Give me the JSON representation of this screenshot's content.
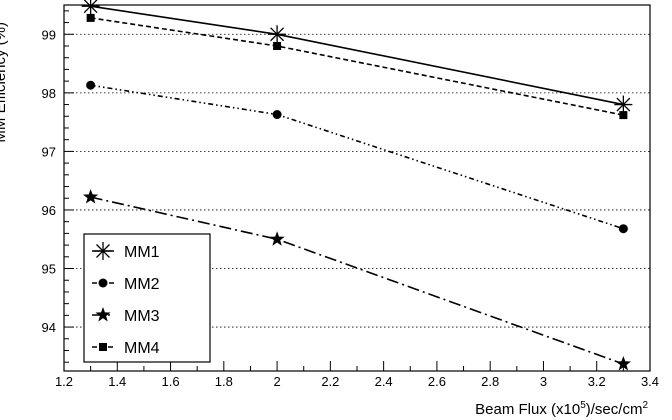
{
  "chart_data": {
    "type": "line",
    "ylabel": "MM Efficiency (%)",
    "xlabel": {
      "base": "Beam Flux (x10",
      "exp1": "5",
      "mid": ")/sec/cm",
      "exp2": "2"
    },
    "xlim": [
      1.2,
      3.4
    ],
    "ylim": [
      93.25,
      99.5
    ],
    "xticks": [
      "1.2",
      "1.4",
      "1.6",
      "1.8",
      "2",
      "2.2",
      "2.4",
      "2.6",
      "2.8",
      "3",
      "3.2",
      "3.4"
    ],
    "yticks": [
      "94",
      "95",
      "96",
      "97",
      "98",
      "99"
    ],
    "grid": {
      "y": true,
      "x": false,
      "style": "dotted"
    },
    "legend": {
      "placement": "bottom-left"
    },
    "series": [
      {
        "name": "MM1",
        "marker": "asterisk",
        "dash": "solid",
        "x": [
          1.3,
          2.0,
          3.3
        ],
        "y": [
          99.48,
          99.0,
          97.8
        ]
      },
      {
        "name": "MM2",
        "marker": "circle",
        "dash": "dash-dot-dot",
        "x": [
          1.3,
          2.0,
          3.3
        ],
        "y": [
          98.13,
          97.63,
          95.68
        ]
      },
      {
        "name": "MM3",
        "marker": "star",
        "dash": "long-dash-dot",
        "x": [
          1.3,
          2.0,
          3.3
        ],
        "y": [
          96.22,
          95.5,
          93.37
        ]
      },
      {
        "name": "MM4",
        "marker": "square",
        "dash": "dashed",
        "x": [
          1.3,
          2.0,
          3.3
        ],
        "y": [
          99.28,
          98.8,
          97.62
        ]
      }
    ]
  }
}
